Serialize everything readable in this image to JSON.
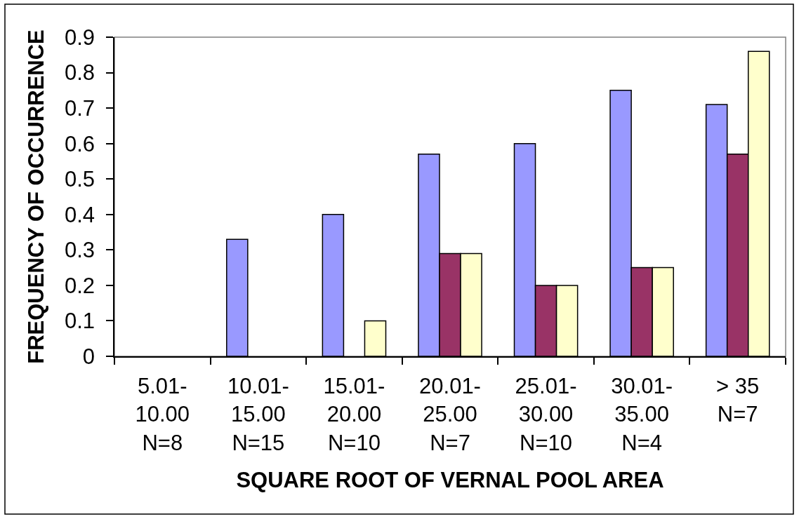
{
  "chart_data": {
    "type": "bar",
    "xlabel": "SQUARE ROOT OF VERNAL POOL AREA",
    "ylabel": "FREQUENCY OF OCCURRENCE",
    "categories": [
      "5.01-\n10.00\nN=8",
      "10.01-\n15.00\nN=15",
      "15.01-\n20.00\nN=10",
      "20.01-\n25.00\nN=7",
      "25.01-\n30.00\nN=10",
      "30.01-\n35.00\nN=4",
      "> 35\nN=7"
    ],
    "series": [
      {
        "color": "#9999ff",
        "values": [
          0,
          0.33,
          0.4,
          0.57,
          0.6,
          0.75,
          0.71
        ]
      },
      {
        "color": "#993366",
        "values": [
          0,
          0,
          0,
          0.29,
          0.2,
          0.25,
          0.57
        ]
      },
      {
        "color": "#ffffcc",
        "values": [
          0,
          0,
          0.1,
          0.29,
          0.2,
          0.25,
          0.86
        ]
      }
    ],
    "ylim": [
      0,
      0.9
    ],
    "yticks": [
      0,
      0.1,
      0.2,
      0.3,
      0.4,
      0.5,
      0.6,
      0.7,
      0.8,
      0.9
    ],
    "grid": false
  }
}
